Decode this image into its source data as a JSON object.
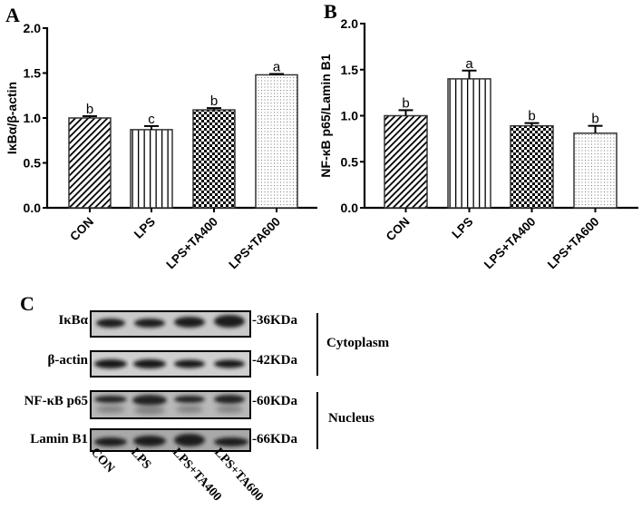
{
  "chart_data": [
    {
      "panel": "A",
      "type": "bar",
      "title": "",
      "xlabel": "",
      "ylabel": "IκBα/β-actin",
      "categories": [
        "CON",
        "LPS",
        "LPS+TA400",
        "LPS+TA600"
      ],
      "values": [
        1.0,
        0.87,
        1.09,
        1.48
      ],
      "errors": [
        0.02,
        0.04,
        0.02,
        0.01
      ],
      "significance": [
        "b",
        "c",
        "b",
        "a"
      ],
      "patterns": [
        "diagonal-hatch",
        "vertical-lines",
        "checkerboard",
        "dots"
      ],
      "ylim": [
        0,
        2.0
      ],
      "yticks": [
        "0.0",
        "0.5",
        "1.0",
        "1.5",
        "2.0"
      ],
      "grid": false,
      "legend": "none"
    },
    {
      "panel": "B",
      "type": "bar",
      "title": "",
      "xlabel": "",
      "ylabel": "NF-κB p65/Lamin B1",
      "categories": [
        "CON",
        "LPS",
        "LPS+TA400",
        "LPS+TA600"
      ],
      "values": [
        1.0,
        1.4,
        0.89,
        0.81
      ],
      "errors": [
        0.06,
        0.09,
        0.03,
        0.08
      ],
      "significance": [
        "b",
        "a",
        "b",
        "b"
      ],
      "patterns": [
        "diagonal-hatch",
        "vertical-lines",
        "checkerboard",
        "dots"
      ],
      "ylim": [
        0,
        2.0
      ],
      "yticks": [
        "0.0",
        "0.5",
        "1.0",
        "1.5",
        "2.0"
      ],
      "grid": false,
      "legend": "none"
    }
  ],
  "panels": {
    "a": {
      "letter": "A",
      "ylabel": "IκBα/β-actin"
    },
    "b": {
      "letter": "B",
      "ylabel": "NF-κB p65/Lamin B1"
    },
    "c": {
      "letter": "C",
      "blots": [
        {
          "label": "IκBα",
          "kda": "-36KDa"
        },
        {
          "label": "β-actin",
          "kda": "-42KDa"
        },
        {
          "label": "NF-κB p65",
          "kda": "-60KDa"
        },
        {
          "label": "Lamin B1",
          "kda": "-66KDa"
        }
      ],
      "fractions": {
        "cytoplasm": "Cytoplasm",
        "nucleus": "Nucleus"
      },
      "lanes": [
        "CON",
        "LPS",
        "LPS+TA400",
        "LPS+TA600"
      ]
    }
  }
}
